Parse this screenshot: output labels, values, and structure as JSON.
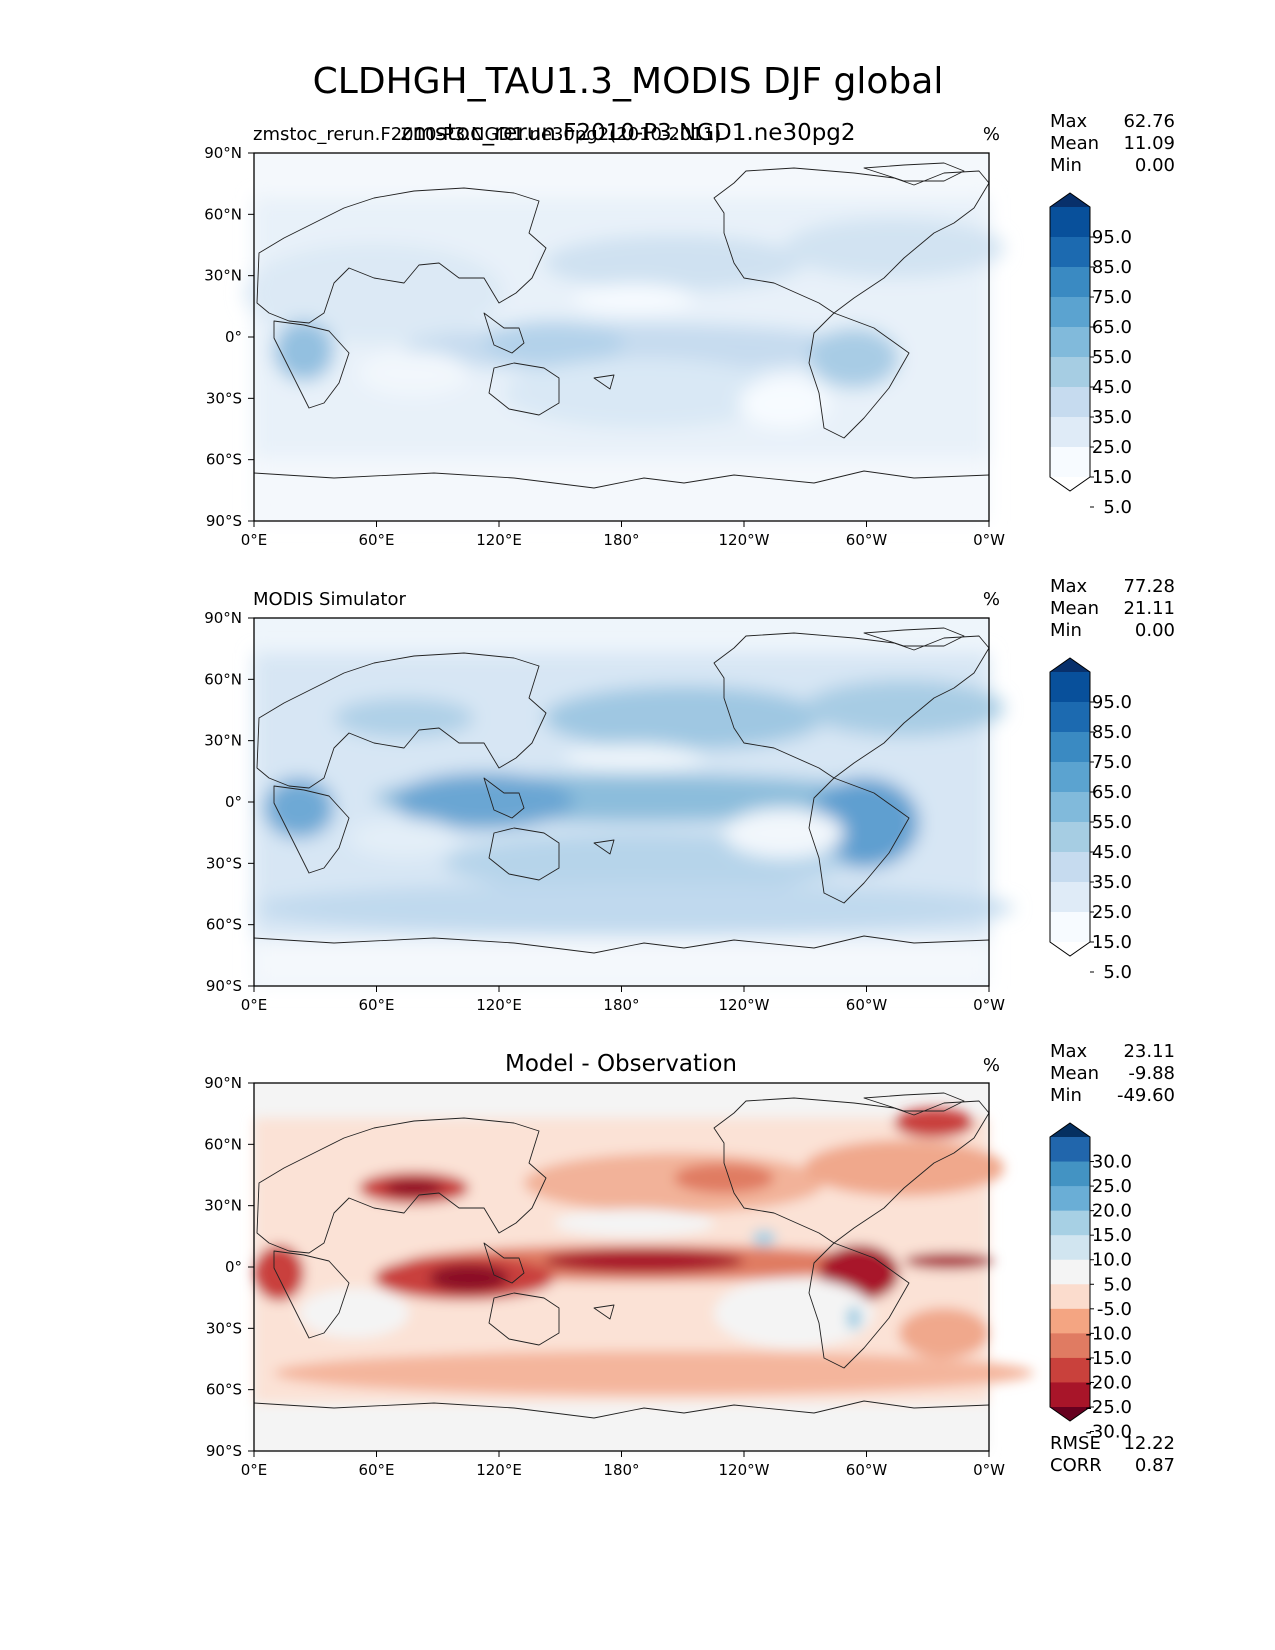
{
  "figure_title": "CLDHGH_TAU1.3_MODIS DJF global",
  "figure_subtitle": "zmstoc_rerun.F2010-P3.NGD1.ne30pg2",
  "chart_data": [
    {
      "type": "heatmap",
      "panel": "test",
      "left_title": "zmstoc_rerun.F2010-P3.NGD1.ne30pg2(2010-2011)",
      "center_title": "",
      "units": "%",
      "stats": [
        {
          "label": "Max",
          "value": "62.76"
        },
        {
          "label": "Mean",
          "value": "11.09"
        },
        {
          "label": "Min",
          "value": "0.00"
        }
      ],
      "colorbar": {
        "extend": "both",
        "labels": [
          "95.0",
          "85.0",
          "75.0",
          "65.0",
          "55.0",
          "45.0",
          "35.0",
          "25.0",
          "15.0",
          "5.0"
        ],
        "colors": [
          "#08306b",
          "#08509b",
          "#1c6ab0",
          "#3a8ac2",
          "#5ba3d0",
          "#81badb",
          "#a6cde3",
          "#c6dbef",
          "#dfebf7",
          "#f7fbff",
          "#ffffff"
        ]
      },
      "x_ticks": [
        "0°E",
        "60°E",
        "120°E",
        "180°",
        "120°W",
        "60°W",
        "0°W"
      ],
      "y_ticks": [
        "90°N",
        "60°N",
        "30°N",
        "0°",
        "30°S",
        "60°S",
        "90°S"
      ]
    },
    {
      "type": "heatmap",
      "panel": "reference",
      "left_title": "MODIS Simulator",
      "center_title": "",
      "units": "%",
      "stats": [
        {
          "label": "Max",
          "value": "77.28"
        },
        {
          "label": "Mean",
          "value": "21.11"
        },
        {
          "label": "Min",
          "value": "0.00"
        }
      ],
      "colorbar": {
        "extend": "both",
        "labels": [
          "95.0",
          "85.0",
          "75.0",
          "65.0",
          "55.0",
          "45.0",
          "35.0",
          "25.0",
          "15.0",
          "5.0"
        ],
        "colors": [
          "#08306b",
          "#08509b",
          "#1c6ab0",
          "#3a8ac2",
          "#5ba3d0",
          "#81badb",
          "#a6cde3",
          "#c6dbef",
          "#dfebf7",
          "#f7fbff",
          "#ffffff"
        ]
      },
      "x_ticks": [
        "0°E",
        "60°E",
        "120°E",
        "180°",
        "120°W",
        "60°W",
        "0°W"
      ],
      "y_ticks": [
        "90°N",
        "60°N",
        "30°N",
        "0°",
        "30°S",
        "60°S",
        "90°S"
      ]
    },
    {
      "type": "heatmap",
      "panel": "difference",
      "left_title": "",
      "center_title": "Model - Observation",
      "units": "%",
      "stats": [
        {
          "label": "Max",
          "value": "23.11"
        },
        {
          "label": "Mean",
          "value": "-9.88"
        },
        {
          "label": "Min",
          "value": "-49.60"
        }
      ],
      "colorbar": {
        "extend": "both",
        "labels": [
          "30.0",
          "25.0",
          "20.0",
          "15.0",
          "10.0",
          "5.0",
          "-5.0",
          "-10.0",
          "-15.0",
          "-20.0",
          "-25.0",
          "-30.0"
        ],
        "colors": [
          "#053061",
          "#2166ac",
          "#4393c3",
          "#6aaed6",
          "#a7d0e4",
          "#d1e5f0",
          "#f4f4f4",
          "#fbdccd",
          "#f4a582",
          "#e07b62",
          "#c9413c",
          "#a81529",
          "#67001f"
        ]
      },
      "x_ticks": [
        "0°E",
        "60°E",
        "120°E",
        "180°",
        "120°W",
        "60°W",
        "0°W"
      ],
      "y_ticks": [
        "90°N",
        "60°N",
        "30°N",
        "0°",
        "30°S",
        "60°S",
        "90°S"
      ],
      "metrics": [
        {
          "label": "RMSE",
          "value": "12.22"
        },
        {
          "label": "CORR",
          "value": "0.87"
        }
      ]
    }
  ]
}
